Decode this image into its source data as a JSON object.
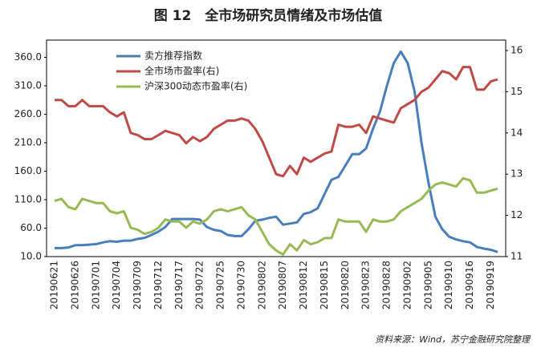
{
  "chart_data": {
    "type": "line",
    "title": "图 12　全市场研究员情绪及市场估值",
    "source": "资料来源：Wind，苏宁金融研究院整理",
    "categories": [
      "20190621",
      null,
      null,
      "20190626",
      null,
      null,
      "20190701",
      null,
      null,
      "20190704",
      null,
      null,
      "20190709",
      null,
      null,
      "20190712",
      null,
      null,
      "20190717",
      null,
      null,
      "20190722",
      null,
      null,
      "20190725",
      null,
      null,
      "20190730",
      null,
      null,
      "20190802",
      null,
      null,
      "20190807",
      null,
      null,
      "20190812",
      null,
      null,
      "20190815",
      null,
      null,
      "20190820",
      null,
      null,
      "20190823",
      null,
      null,
      "20190828",
      null,
      null,
      "20190902",
      null,
      null,
      "20190905",
      null,
      null,
      "20190910",
      null,
      null,
      "20190916",
      null,
      null,
      "20190919",
      null
    ],
    "series": [
      {
        "name": "卖方推荐指数",
        "color": "#4a7ebb",
        "values": [
          25,
          25,
          26,
          30,
          30,
          31,
          32,
          35,
          37,
          36,
          38,
          38,
          41,
          43,
          48,
          54,
          62,
          76,
          76,
          76,
          76,
          75,
          62,
          57,
          55,
          48,
          46,
          46,
          58,
          73,
          75,
          78,
          80,
          66,
          68,
          70,
          85,
          88,
          95,
          120,
          145,
          150,
          170,
          190,
          190,
          200,
          235,
          265,
          310,
          350,
          370,
          350,
          300,
          210,
          140,
          80,
          58,
          45,
          40,
          37,
          35,
          27,
          24,
          22,
          18
        ]
      },
      {
        "name": "全市场市盈率(右)",
        "color": "#be4b48",
        "axis": "y2",
        "values": [
          14.8,
          14.8,
          14.65,
          14.65,
          14.8,
          14.65,
          14.65,
          14.65,
          14.5,
          14.4,
          14.5,
          14.0,
          13.95,
          13.85,
          13.85,
          13.95,
          14.05,
          14.0,
          13.95,
          13.75,
          13.9,
          13.8,
          13.9,
          14.1,
          14.2,
          14.3,
          14.3,
          14.35,
          14.3,
          14.1,
          13.8,
          13.4,
          13.0,
          12.95,
          13.2,
          13.0,
          13.4,
          13.3,
          13.4,
          13.5,
          13.55,
          14.2,
          14.15,
          14.15,
          14.2,
          14.0,
          14.4,
          14.35,
          14.3,
          14.25,
          14.6,
          14.7,
          14.8,
          15.0,
          15.1,
          15.3,
          15.5,
          15.45,
          15.3,
          15.6,
          15.6,
          15.05,
          15.05,
          15.25,
          15.3
        ]
      },
      {
        "name": "沪深300动态市盈率(右)",
        "color": "#98b954",
        "axis": "y2",
        "values": [
          12.35,
          12.4,
          12.2,
          12.15,
          12.4,
          12.35,
          12.3,
          12.3,
          12.1,
          12.05,
          12.1,
          11.7,
          11.65,
          11.55,
          11.6,
          11.7,
          11.9,
          11.85,
          11.85,
          11.7,
          11.85,
          11.8,
          11.9,
          12.1,
          12.15,
          12.1,
          12.15,
          12.2,
          12.0,
          11.9,
          11.6,
          11.3,
          11.15,
          11.05,
          11.3,
          11.15,
          11.4,
          11.3,
          11.35,
          11.45,
          11.45,
          11.9,
          11.85,
          11.85,
          11.85,
          11.6,
          11.9,
          11.85,
          11.85,
          11.9,
          12.1,
          12.2,
          12.3,
          12.4,
          12.6,
          12.75,
          12.8,
          12.75,
          12.7,
          12.9,
          12.85,
          12.55,
          12.55,
          12.6,
          12.65
        ]
      }
    ],
    "ylim": [
      10,
      372
    ],
    "yticks": [
      {
        "value": 10,
        "label": "10.0"
      },
      {
        "value": 60,
        "label": "60.0"
      },
      {
        "value": 110,
        "label": "110.0"
      },
      {
        "value": 160,
        "label": "160.0"
      },
      {
        "value": 210,
        "label": "210.0"
      },
      {
        "value": 260,
        "label": "260.0"
      },
      {
        "value": 310,
        "label": "310.0"
      },
      {
        "value": 360,
        "label": "360.0"
      }
    ],
    "y2lim": [
      11,
      16
    ],
    "y2ticks": [
      11,
      12,
      13,
      14,
      15,
      16
    ],
    "grid": false
  }
}
